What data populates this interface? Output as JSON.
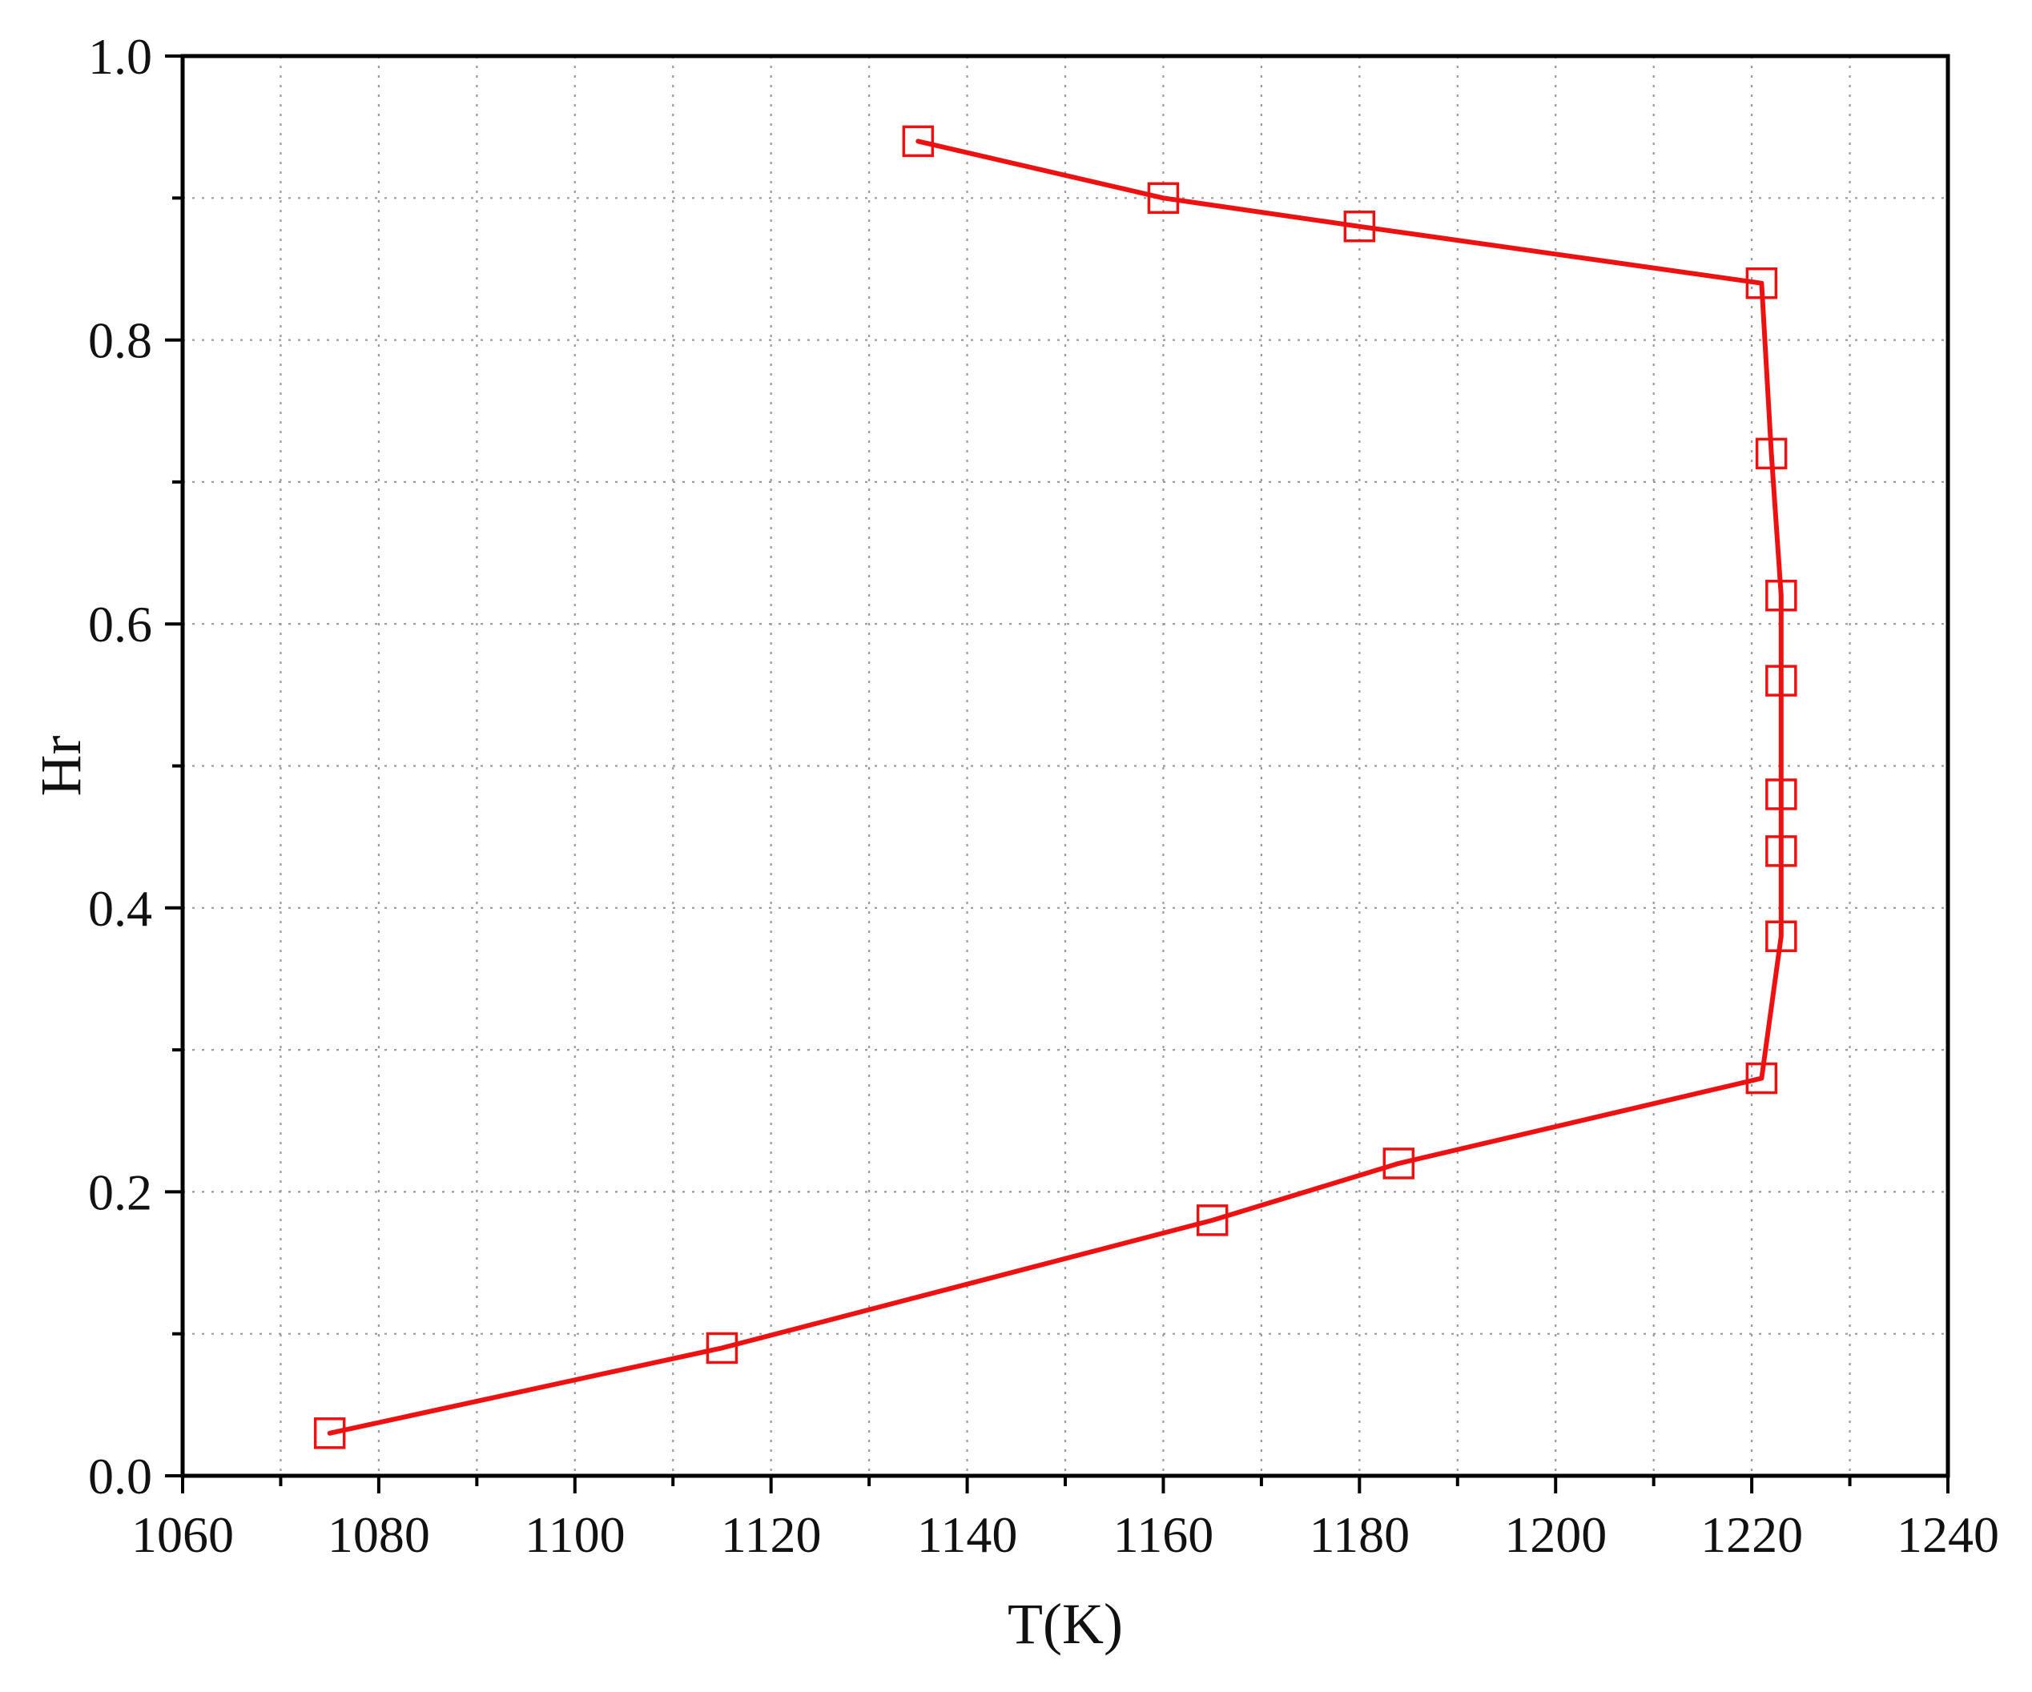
{
  "chart_data": {
    "type": "line",
    "title": "",
    "xlabel": "T(K)",
    "ylabel": "Hr",
    "xlim": [
      1060,
      1240
    ],
    "ylim": [
      0.0,
      1.0
    ],
    "x_ticks": [
      1060,
      1080,
      1100,
      1120,
      1140,
      1160,
      1180,
      1200,
      1220,
      1240
    ],
    "x_tick_labels": [
      "1060",
      "1080",
      "1100",
      "1120",
      "1140",
      "1160",
      "1180",
      "1200",
      "1220",
      "1240"
    ],
    "y_ticks": [
      0.0,
      0.2,
      0.4,
      0.6,
      0.8,
      1.0
    ],
    "y_tick_labels": [
      "0.0",
      "0.2",
      "0.4",
      "0.6",
      "0.8",
      "1.0"
    ],
    "grid": true,
    "grid_style": "dotted",
    "legend": false,
    "series": [
      {
        "marker": "open-square",
        "color": "#ee1111",
        "points": [
          {
            "x": 1075,
            "y": 0.03
          },
          {
            "x": 1115,
            "y": 0.09
          },
          {
            "x": 1165,
            "y": 0.18
          },
          {
            "x": 1184,
            "y": 0.22
          },
          {
            "x": 1221,
            "y": 0.28
          },
          {
            "x": 1223,
            "y": 0.38
          },
          {
            "x": 1223,
            "y": 0.44
          },
          {
            "x": 1223,
            "y": 0.48
          },
          {
            "x": 1223,
            "y": 0.56
          },
          {
            "x": 1223,
            "y": 0.62
          },
          {
            "x": 1222,
            "y": 0.72
          },
          {
            "x": 1221,
            "y": 0.84
          },
          {
            "x": 1180,
            "y": 0.88
          },
          {
            "x": 1160,
            "y": 0.9
          },
          {
            "x": 1135,
            "y": 0.94
          }
        ]
      }
    ]
  }
}
